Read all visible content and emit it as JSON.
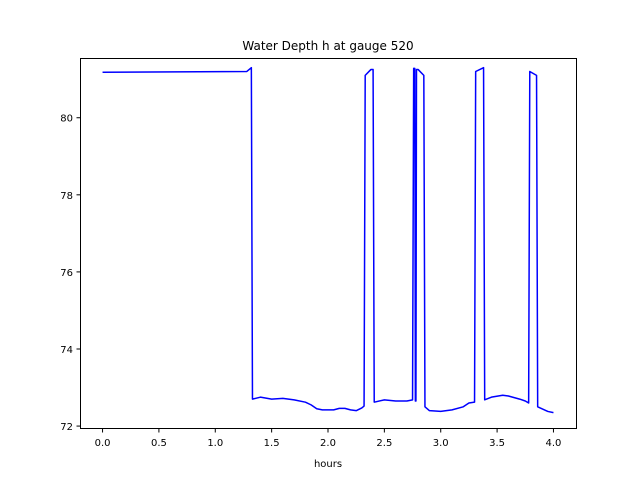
{
  "chart_data": {
    "type": "line",
    "title": "Water Depth h at gauge 520",
    "xlabel": "hours",
    "ylabel": "",
    "xlim": [
      -0.2,
      4.2
    ],
    "ylim": [
      71.95,
      81.55
    ],
    "xticks": [
      0.0,
      0.5,
      1.0,
      1.5,
      2.0,
      2.5,
      3.0,
      3.5,
      4.0
    ],
    "xtick_labels": [
      "0.0",
      "0.5",
      "1.0",
      "1.5",
      "2.0",
      "2.5",
      "3.0",
      "3.5",
      "4.0"
    ],
    "yticks": [
      72,
      74,
      76,
      78,
      80
    ],
    "ytick_labels": [
      "72",
      "74",
      "76",
      "78",
      "80"
    ],
    "grid": false,
    "colors": {
      "line": "#0000ff",
      "axes": "#000000",
      "background": "#ffffff"
    },
    "series": [
      {
        "points": [
          [
            0.0,
            81.18
          ],
          [
            1.28,
            81.2
          ],
          [
            1.32,
            81.3
          ],
          [
            1.33,
            72.7
          ],
          [
            1.4,
            72.75
          ],
          [
            1.5,
            72.7
          ],
          [
            1.6,
            72.72
          ],
          [
            1.7,
            72.68
          ],
          [
            1.8,
            72.62
          ],
          [
            1.85,
            72.55
          ],
          [
            1.9,
            72.45
          ],
          [
            1.95,
            72.42
          ],
          [
            2.0,
            72.42
          ],
          [
            2.05,
            72.42
          ],
          [
            2.1,
            72.46
          ],
          [
            2.15,
            72.46
          ],
          [
            2.2,
            72.42
          ],
          [
            2.25,
            72.4
          ],
          [
            2.3,
            72.47
          ],
          [
            2.32,
            72.52
          ],
          [
            2.33,
            81.1
          ],
          [
            2.38,
            81.25
          ],
          [
            2.4,
            81.25
          ],
          [
            2.41,
            72.62
          ],
          [
            2.5,
            72.68
          ],
          [
            2.6,
            72.65
          ],
          [
            2.7,
            72.65
          ],
          [
            2.75,
            72.68
          ],
          [
            2.76,
            81.28
          ],
          [
            2.77,
            81.28
          ],
          [
            2.775,
            72.65
          ],
          [
            2.78,
            72.65
          ],
          [
            2.785,
            81.25
          ],
          [
            2.8,
            81.25
          ],
          [
            2.85,
            81.1
          ],
          [
            2.86,
            72.5
          ],
          [
            2.9,
            72.4
          ],
          [
            3.0,
            72.38
          ],
          [
            3.1,
            72.42
          ],
          [
            3.2,
            72.5
          ],
          [
            3.25,
            72.6
          ],
          [
            3.3,
            72.62
          ],
          [
            3.31,
            81.2
          ],
          [
            3.38,
            81.3
          ],
          [
            3.39,
            72.68
          ],
          [
            3.45,
            72.75
          ],
          [
            3.55,
            72.8
          ],
          [
            3.6,
            72.78
          ],
          [
            3.7,
            72.7
          ],
          [
            3.75,
            72.65
          ],
          [
            3.78,
            72.6
          ],
          [
            3.79,
            81.2
          ],
          [
            3.85,
            81.1
          ],
          [
            3.86,
            72.5
          ],
          [
            3.95,
            72.38
          ],
          [
            4.0,
            72.35
          ]
        ]
      }
    ]
  }
}
